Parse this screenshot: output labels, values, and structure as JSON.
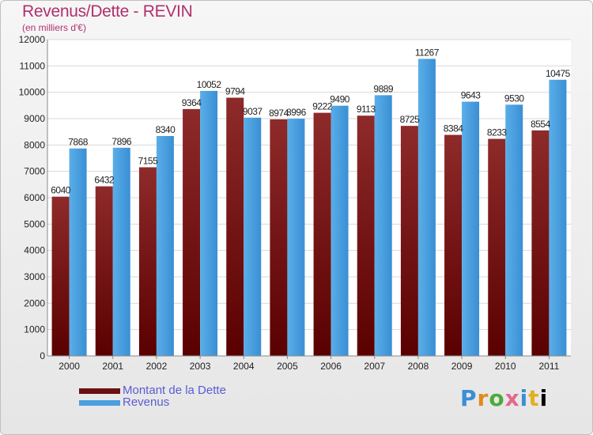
{
  "header": {
    "title": "Revenus/Dette - REVIN",
    "subtitle": "(en milliers d'€)"
  },
  "chart_data": {
    "type": "bar",
    "title": "Revenus/Dette - REVIN",
    "subtitle": "(en milliers d'€)",
    "categories": [
      "2000",
      "2001",
      "2002",
      "2003",
      "2004",
      "2005",
      "2006",
      "2007",
      "2008",
      "2009",
      "2010",
      "2011"
    ],
    "series": [
      {
        "name": "Montant de la Dette",
        "color": "#7a1a1a",
        "values": [
          6040,
          6432,
          7155,
          9364,
          9794,
          8974,
          9222,
          9113,
          8725,
          8384,
          8233,
          8554
        ]
      },
      {
        "name": "Revenus",
        "color": "#4a9fdf",
        "values": [
          7868,
          7896,
          8340,
          10052,
          9037,
          8996,
          9490,
          9889,
          11267,
          9643,
          9530,
          10475
        ]
      }
    ],
    "ylim": [
      0,
      12000
    ],
    "yticks": [
      "0",
      "1000",
      "2000",
      "3000",
      "4000",
      "5000",
      "6000",
      "7000",
      "8000",
      "9000",
      "10000",
      "11000",
      "12000"
    ],
    "grid": true,
    "legend_position": "bottom-left"
  },
  "legend": {
    "items": [
      {
        "label": "Montant de la Dette",
        "color": "#6b0f0f"
      },
      {
        "label": "Revenus",
        "color": "#4a9fdf"
      }
    ]
  },
  "brand": {
    "letters": [
      "P",
      "r",
      "o",
      "x",
      "i",
      "t",
      "i"
    ]
  }
}
